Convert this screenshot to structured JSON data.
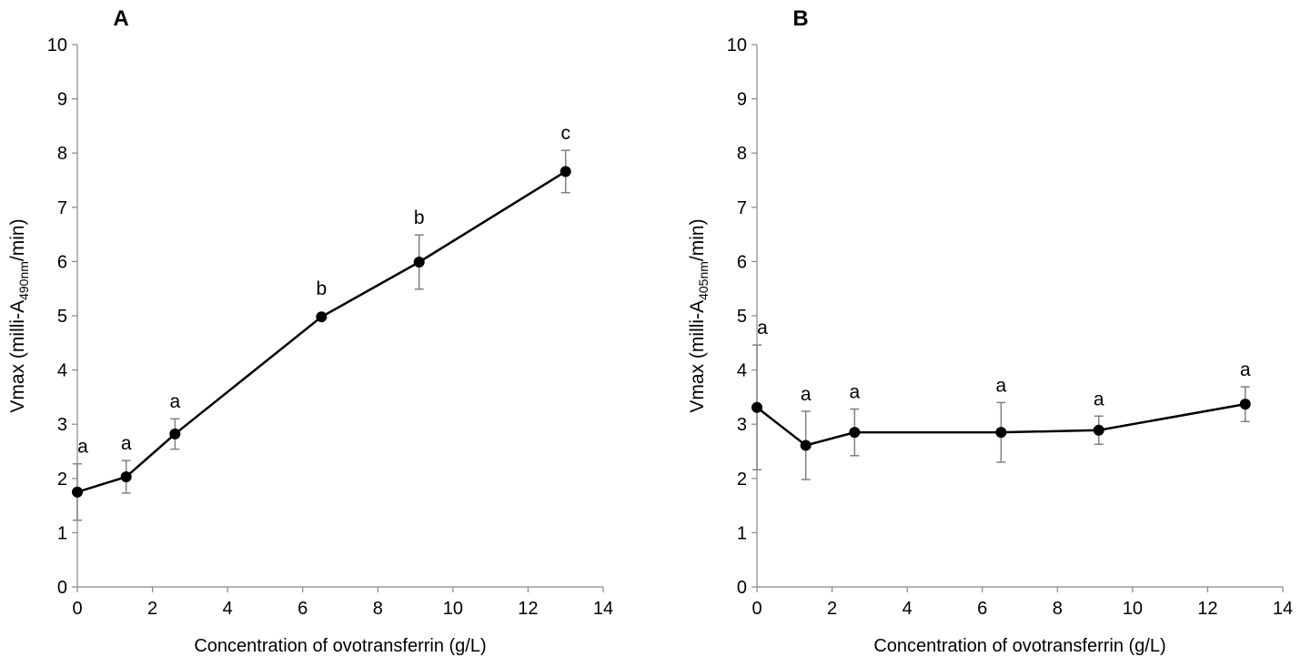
{
  "chart_data": [
    {
      "type": "line",
      "panel_label": "A",
      "xlabel": "Concentration of ovotransferrin (g/L)",
      "ylabel": {
        "prefix": "Vmax (milli-A",
        "subscript": "490nm",
        "suffix": "/min)"
      },
      "xlim": [
        0,
        14
      ],
      "ylim": [
        0,
        10
      ],
      "xticks": [
        0,
        2,
        4,
        6,
        8,
        10,
        12,
        14
      ],
      "yticks": [
        0,
        1,
        2,
        3,
        4,
        5,
        6,
        7,
        8,
        9,
        10
      ],
      "grid": false,
      "series": [
        {
          "name": "Vmax",
          "x": [
            0,
            1.3,
            2.6,
            6.5,
            9.1,
            13
          ],
          "y": [
            1.75,
            2.03,
            2.82,
            4.98,
            5.99,
            7.66
          ],
          "error": [
            0.52,
            0.3,
            0.28,
            0.0,
            0.5,
            0.39
          ],
          "labels": [
            "a",
            "a",
            "a",
            "b",
            "b",
            "c"
          ]
        }
      ]
    },
    {
      "type": "line",
      "panel_label": "B",
      "xlabel": "Concentration of ovotransferrin (g/L)",
      "ylabel": {
        "prefix": "Vmax (milli-A",
        "subscript": "405nm",
        "suffix": "/min)"
      },
      "xlim": [
        0,
        14
      ],
      "ylim": [
        0,
        10
      ],
      "xticks": [
        0,
        2,
        4,
        6,
        8,
        10,
        12,
        14
      ],
      "yticks": [
        0,
        1,
        2,
        3,
        4,
        5,
        6,
        7,
        8,
        9,
        10
      ],
      "grid": false,
      "series": [
        {
          "name": "Vmax",
          "x": [
            0,
            1.3,
            2.6,
            6.5,
            9.1,
            13
          ],
          "y": [
            3.31,
            2.61,
            2.85,
            2.85,
            2.89,
            3.37
          ],
          "error": [
            1.15,
            0.63,
            0.43,
            0.55,
            0.26,
            0.32
          ],
          "labels": [
            "a",
            "a",
            "a",
            "a",
            "a",
            "a"
          ]
        }
      ]
    }
  ]
}
